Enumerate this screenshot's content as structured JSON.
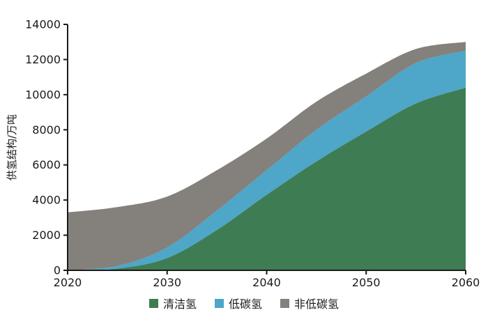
{
  "chart_data": {
    "type": "area",
    "stacked": true,
    "title": "",
    "xlabel": "",
    "ylabel": "供氢结构/万吨",
    "x": [
      2020,
      2025,
      2030,
      2035,
      2040,
      2045,
      2050,
      2055,
      2060
    ],
    "series": [
      {
        "name": "清洁氢",
        "key": "clean-hydrogen",
        "color": "#3E7D54",
        "values": [
          0,
          100,
          700,
          2300,
          4300,
          6200,
          7900,
          9500,
          10400
        ]
      },
      {
        "name": "低碳氢",
        "key": "low-carbon-hydrogen",
        "color": "#4EA6C8",
        "values": [
          0,
          150,
          600,
          1100,
          1400,
          1800,
          2000,
          2300,
          2100
        ]
      },
      {
        "name": "非低碳氢",
        "key": "non-low-carbon-hydrogen",
        "color": "#84807B",
        "values": [
          3300,
          3350,
          2900,
          2300,
          1800,
          1600,
          1300,
          800,
          500
        ]
      }
    ],
    "xlim": [
      2020,
      2060
    ],
    "ylim": [
      0,
      14000
    ],
    "xticks": [
      2020,
      2030,
      2040,
      2050,
      2060
    ],
    "yticks": [
      0,
      2000,
      4000,
      6000,
      8000,
      10000,
      12000,
      14000
    ],
    "grid": false,
    "legend_position": "bottom",
    "axis_color": "#1a1a1a",
    "tick_font_size": 16,
    "ylabel_font_size": 15
  }
}
